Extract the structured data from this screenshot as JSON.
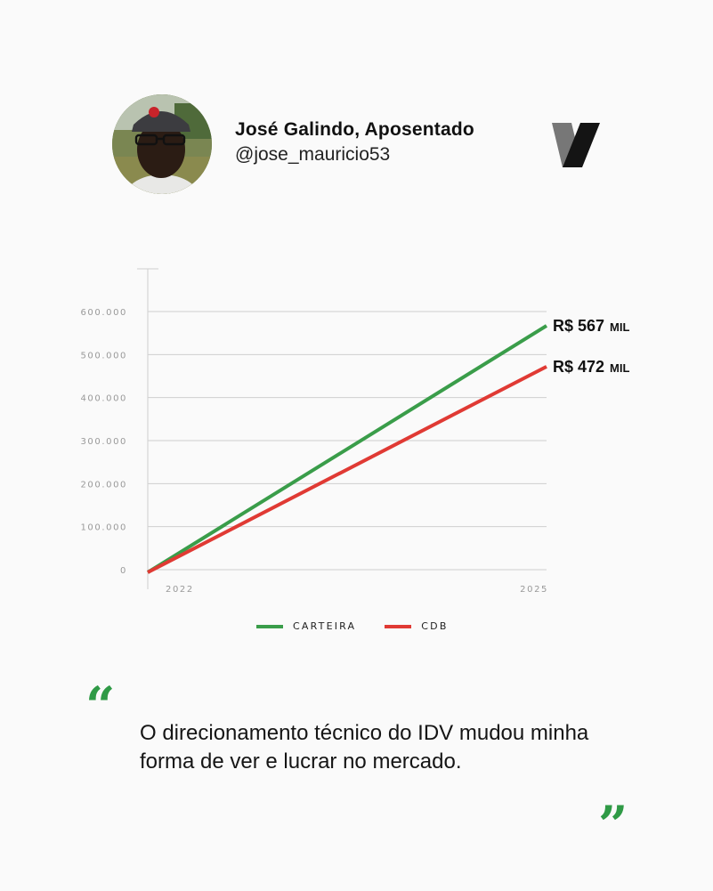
{
  "author": {
    "name": "José Galindo, Aposentado",
    "handle": "@jose_mauricio53"
  },
  "colors": {
    "carteira": "#3a9d4a",
    "cdb": "#e03a34",
    "quote_marks": "#2f9a46",
    "grid": "#cfcfcf",
    "tick_text": "#999999"
  },
  "chart_data": {
    "type": "line",
    "x": [
      "2022",
      "2025"
    ],
    "ylim": [
      0,
      600000
    ],
    "y_ticks": [
      "0",
      "100.000",
      "200.000",
      "300.000",
      "400.000",
      "500.000",
      "600.000"
    ],
    "y_tick_values": [
      0,
      100000,
      200000,
      300000,
      400000,
      500000,
      600000
    ],
    "grid": true,
    "legend_position": "bottom-center",
    "series": [
      {
        "name": "CARTEIRA",
        "values": [
          0,
          567000
        ],
        "end_label_value": "R$ 567",
        "end_label_unit": "MIL"
      },
      {
        "name": "CDB",
        "values": [
          0,
          472000
        ],
        "end_label_value": "R$ 472",
        "end_label_unit": "MIL"
      }
    ]
  },
  "quote": {
    "open_mark": "“",
    "close_mark": "”",
    "text": "O direcionamento técnico do IDV mudou minha forma de ver e lucrar no mercado."
  }
}
